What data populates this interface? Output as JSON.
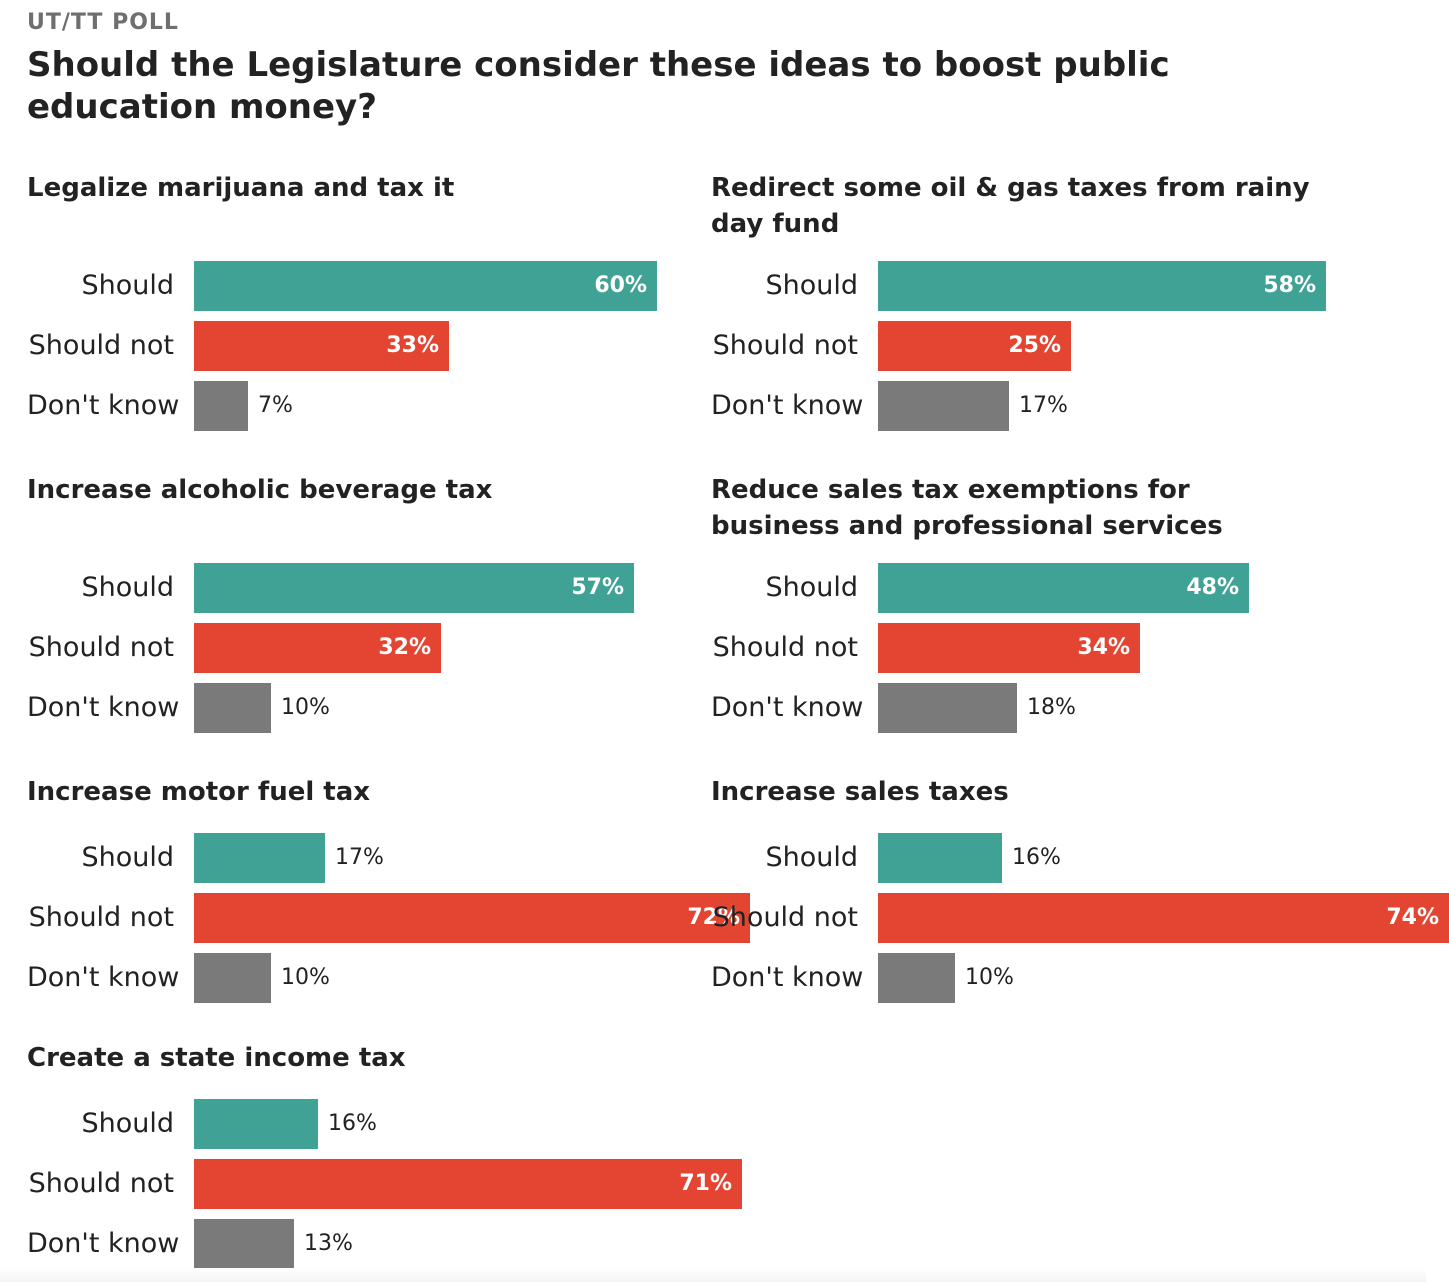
{
  "kicker": "UT/TT POLL",
  "title": "Should the Legislature consider these ideas to boost public education money?",
  "colors": {
    "should": "#3fa295",
    "should_not": "#e34532",
    "dont_know": "#7a7a7a"
  },
  "chart_data": [
    {
      "type": "bar",
      "title": "Legalize marijuana and tax it",
      "categories": [
        "Should",
        "Should not",
        "Don't know"
      ],
      "values": [
        60,
        33,
        7
      ],
      "value_labels": [
        "60%",
        "33%",
        "7%"
      ],
      "xlim": [
        0,
        100
      ]
    },
    {
      "type": "bar",
      "title": "Redirect some oil & gas taxes from rainy day fund",
      "categories": [
        "Should",
        "Should not",
        "Don't know"
      ],
      "values": [
        58,
        25,
        17
      ],
      "value_labels": [
        "58%",
        "25%",
        "17%"
      ],
      "xlim": [
        0,
        100
      ]
    },
    {
      "type": "bar",
      "title": "Increase alcoholic beverage tax",
      "categories": [
        "Should",
        "Should not",
        "Don't know"
      ],
      "values": [
        57,
        32,
        10
      ],
      "value_labels": [
        "57%",
        "32%",
        "10%"
      ],
      "xlim": [
        0,
        100
      ]
    },
    {
      "type": "bar",
      "title": "Reduce sales tax exemptions for business and professional services",
      "categories": [
        "Should",
        "Should not",
        "Don't know"
      ],
      "values": [
        48,
        34,
        18
      ],
      "value_labels": [
        "48%",
        "34%",
        "18%"
      ],
      "xlim": [
        0,
        100
      ]
    },
    {
      "type": "bar",
      "title": "Increase motor fuel tax",
      "categories": [
        "Should",
        "Should not",
        "Don't know"
      ],
      "values": [
        17,
        72,
        10
      ],
      "value_labels": [
        "17%",
        "72%",
        "10%"
      ],
      "xlim": [
        0,
        100
      ]
    },
    {
      "type": "bar",
      "title": "Increase sales taxes",
      "categories": [
        "Should",
        "Should not",
        "Don't know"
      ],
      "values": [
        16,
        74,
        10
      ],
      "value_labels": [
        "16%",
        "74%",
        "10%"
      ],
      "xlim": [
        0,
        100
      ]
    },
    {
      "type": "bar",
      "title": "Create a state income tax",
      "categories": [
        "Should",
        "Should not",
        "Don't know"
      ],
      "values": [
        16,
        71,
        13
      ],
      "value_labels": [
        "16%",
        "71%",
        "13%"
      ],
      "xlim": [
        0,
        100
      ]
    }
  ]
}
